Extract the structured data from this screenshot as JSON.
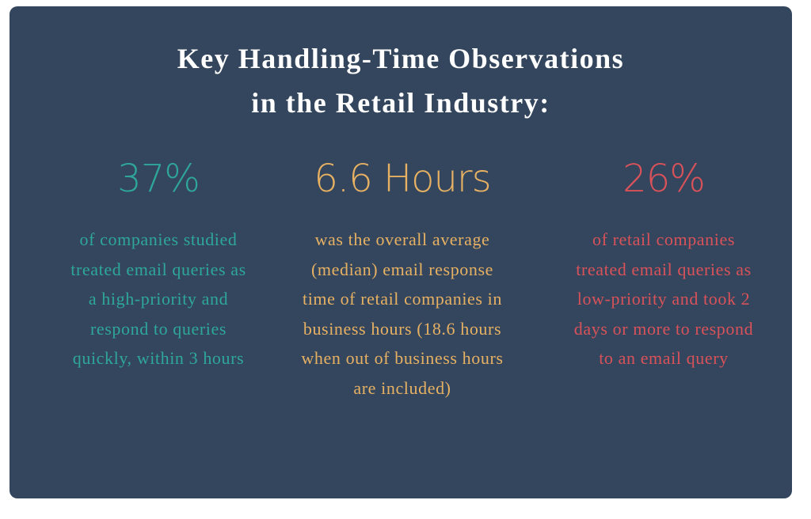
{
  "title_lines": [
    "Key Handling-Time Observations",
    "in the Retail Industry:"
  ],
  "stats": [
    {
      "headline": "37%",
      "description": "of companies studied treated email queries as a high-priority and respond to queries quickly, within 3 hours"
    },
    {
      "headline": "6.6 Hours",
      "description": "was the overall average (median) email response time of retail companies in business hours (18.6 hours when out of business hours are included)"
    },
    {
      "headline": "26%",
      "description": "of retail companies treated email queries as low-priority and took 2 days or more to respond to an email query"
    }
  ]
}
